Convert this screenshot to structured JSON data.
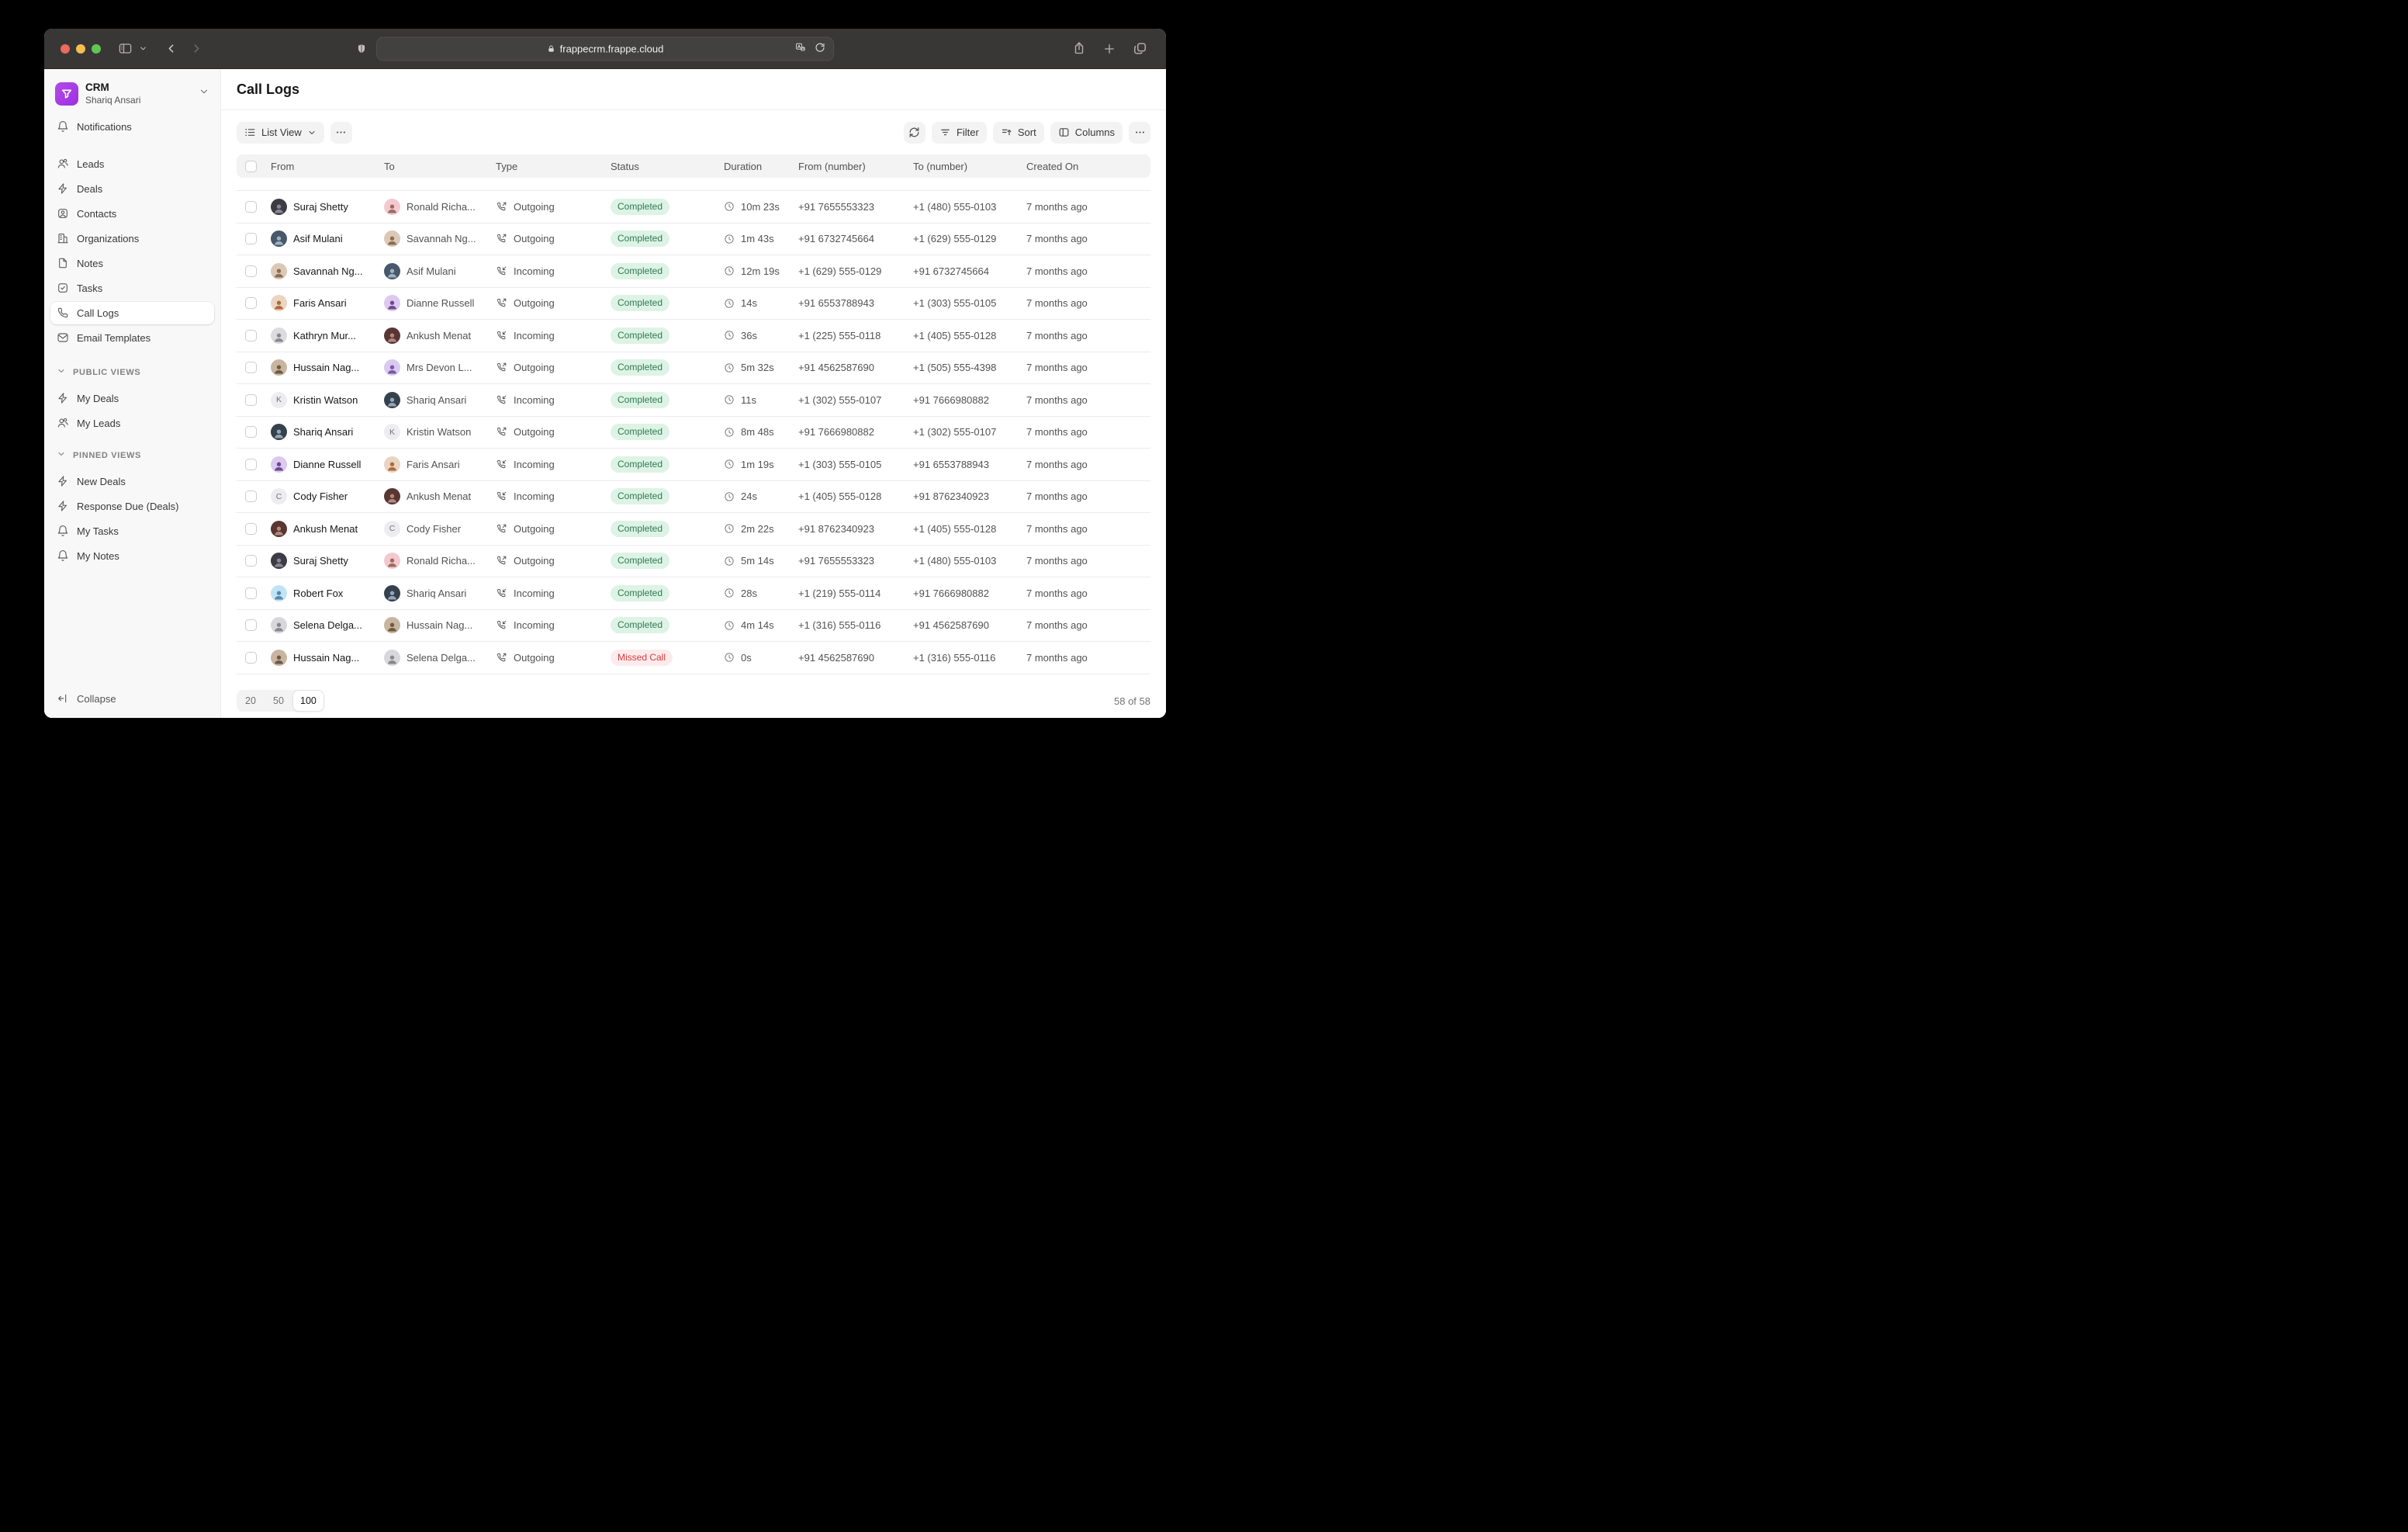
{
  "browser": {
    "url": "frappecrm.frappe.cloud"
  },
  "theme": {
    "completed_bg": "#ddf3e6",
    "completed_fg": "#2f7a4e",
    "missed_bg": "#fcebec",
    "missed_fg": "#d43c3c",
    "accent": "#a63ae2"
  },
  "sidebar": {
    "app": {
      "title": "CRM",
      "user": "Shariq Ansari"
    },
    "primary": [
      {
        "label": "Notifications",
        "icon": "bell-icon",
        "active": false
      }
    ],
    "modules": [
      {
        "label": "Leads",
        "icon": "users-icon",
        "active": false
      },
      {
        "label": "Deals",
        "icon": "zap-icon",
        "active": false
      },
      {
        "label": "Contacts",
        "icon": "contact-icon",
        "active": false
      },
      {
        "label": "Organizations",
        "icon": "building-icon",
        "active": false
      },
      {
        "label": "Notes",
        "icon": "file-icon",
        "active": false
      },
      {
        "label": "Tasks",
        "icon": "check-square-icon",
        "active": false
      },
      {
        "label": "Call Logs",
        "icon": "phone-icon",
        "active": true
      },
      {
        "label": "Email Templates",
        "icon": "mail-icon",
        "active": false
      }
    ],
    "groups": [
      {
        "title": "PUBLIC VIEWS",
        "items": [
          {
            "label": "My Deals",
            "icon": "zap-icon"
          },
          {
            "label": "My Leads",
            "icon": "users-icon"
          }
        ]
      },
      {
        "title": "PINNED VIEWS",
        "items": [
          {
            "label": "New Deals",
            "icon": "zap-icon"
          },
          {
            "label": "Response Due (Deals)",
            "icon": "zap-icon"
          },
          {
            "label": "My Tasks",
            "icon": "bell-icon"
          },
          {
            "label": "My Notes",
            "icon": "bell-icon"
          }
        ]
      }
    ],
    "collapse_label": "Collapse"
  },
  "main": {
    "title": "Call Logs",
    "toolbar": {
      "view": "List View",
      "filter": "Filter",
      "sort": "Sort",
      "columns": "Columns"
    },
    "table": {
      "columns": [
        "From",
        "To",
        "Type",
        "Status",
        "Duration",
        "From (number)",
        "To (number)",
        "Created On"
      ],
      "rows": [
        {
          "from": {
            "name": "Suraj Shetty",
            "avatar": {
              "kind": "photo",
              "bg": "#3d3c44",
              "fg": "#8a8694"
            }
          },
          "to": {
            "name": "Ronald Richa...",
            "avatar": {
              "kind": "photo",
              "bg": "#f3c9d0",
              "fg": "#9c6b5f"
            }
          },
          "type": "Outgoing",
          "status": {
            "label": "Completed",
            "kind": "completed"
          },
          "duration": "10m 23s",
          "from_number": "+91 7655553323",
          "to_number": "+1 (480) 555-0103",
          "created": "7 months ago"
        },
        {
          "from": {
            "name": "Asif Mulani",
            "avatar": {
              "kind": "photo",
              "bg": "#46586a",
              "fg": "#9fb0c0"
            }
          },
          "to": {
            "name": "Savannah Ng...",
            "avatar": {
              "kind": "photo",
              "bg": "#dcc8b6",
              "fg": "#8a6e54"
            }
          },
          "type": "Outgoing",
          "status": {
            "label": "Completed",
            "kind": "completed"
          },
          "duration": "1m 43s",
          "from_number": "+91 6732745664",
          "to_number": "+1 (629) 555-0129",
          "created": "7 months ago"
        },
        {
          "from": {
            "name": "Savannah Ng...",
            "avatar": {
              "kind": "photo",
              "bg": "#dcc8b6",
              "fg": "#8a6e54"
            }
          },
          "to": {
            "name": "Asif Mulani",
            "avatar": {
              "kind": "photo",
              "bg": "#46586a",
              "fg": "#9fb0c0"
            }
          },
          "type": "Incoming",
          "status": {
            "label": "Completed",
            "kind": "completed"
          },
          "duration": "12m 19s",
          "from_number": "+1 (629) 555-0129",
          "to_number": "+91 6732745664",
          "created": "7 months ago"
        },
        {
          "from": {
            "name": "Faris Ansari",
            "avatar": {
              "kind": "photo",
              "bg": "#e9d5c2",
              "fg": "#b06a3c"
            }
          },
          "to": {
            "name": "Dianne Russell",
            "avatar": {
              "kind": "photo",
              "bg": "#dcc8f0",
              "fg": "#6d4a8f"
            }
          },
          "type": "Outgoing",
          "status": {
            "label": "Completed",
            "kind": "completed"
          },
          "duration": "14s",
          "from_number": "+91 6553788943",
          "to_number": "+1 (303) 555-0105",
          "created": "7 months ago"
        },
        {
          "from": {
            "name": "Kathryn Mur...",
            "avatar": {
              "kind": "photo",
              "bg": "#dcdce0",
              "fg": "#8a8a92"
            }
          },
          "to": {
            "name": "Ankush Menat",
            "avatar": {
              "kind": "photo",
              "bg": "#593631",
              "fg": "#b08a80"
            }
          },
          "type": "Incoming",
          "status": {
            "label": "Completed",
            "kind": "completed"
          },
          "duration": "36s",
          "from_number": "+1 (225) 555-0118",
          "to_number": "+1 (405) 555-0128",
          "created": "7 months ago"
        },
        {
          "from": {
            "name": "Hussain Nag...",
            "avatar": {
              "kind": "photo",
              "bg": "#c8b5a0",
              "fg": "#6e5a44"
            }
          },
          "to": {
            "name": "Mrs Devon L...",
            "avatar": {
              "kind": "photo",
              "bg": "#d9c9f2",
              "fg": "#7a5aa0"
            }
          },
          "type": "Outgoing",
          "status": {
            "label": "Completed",
            "kind": "completed"
          },
          "duration": "5m 32s",
          "from_number": "+91 4562587690",
          "to_number": "+1 (505) 555-4398",
          "created": "7 months ago"
        },
        {
          "from": {
            "name": "Kristin Watson",
            "avatar": {
              "kind": "letter",
              "initial": "K",
              "bg": "#ededf0",
              "fg": "#737380"
            }
          },
          "to": {
            "name": "Shariq Ansari",
            "avatar": {
              "kind": "photo",
              "bg": "#35414d",
              "fg": "#94a6b6"
            }
          },
          "type": "Incoming",
          "status": {
            "label": "Completed",
            "kind": "completed"
          },
          "duration": "11s",
          "from_number": "+1 (302) 555-0107",
          "to_number": "+91 7666980882",
          "created": "7 months ago"
        },
        {
          "from": {
            "name": "Shariq Ansari",
            "avatar": {
              "kind": "photo",
              "bg": "#35414d",
              "fg": "#94a6b6"
            }
          },
          "to": {
            "name": "Kristin Watson",
            "avatar": {
              "kind": "letter",
              "initial": "K",
              "bg": "#ededf0",
              "fg": "#737380"
            }
          },
          "type": "Outgoing",
          "status": {
            "label": "Completed",
            "kind": "completed"
          },
          "duration": "8m 48s",
          "from_number": "+91 7666980882",
          "to_number": "+1 (302) 555-0107",
          "created": "7 months ago"
        },
        {
          "from": {
            "name": "Dianne Russell",
            "avatar": {
              "kind": "photo",
              "bg": "#dcc8f0",
              "fg": "#6d4a8f"
            }
          },
          "to": {
            "name": "Faris Ansari",
            "avatar": {
              "kind": "photo",
              "bg": "#e9d5c2",
              "fg": "#b06a3c"
            }
          },
          "type": "Incoming",
          "status": {
            "label": "Completed",
            "kind": "completed"
          },
          "duration": "1m 19s",
          "from_number": "+1 (303) 555-0105",
          "to_number": "+91 6553788943",
          "created": "7 months ago"
        },
        {
          "from": {
            "name": "Cody Fisher",
            "avatar": {
              "kind": "letter",
              "initial": "C",
              "bg": "#ededf0",
              "fg": "#737380"
            }
          },
          "to": {
            "name": "Ankush Menat",
            "avatar": {
              "kind": "photo",
              "bg": "#593631",
              "fg": "#b08a80"
            }
          },
          "type": "Incoming",
          "status": {
            "label": "Completed",
            "kind": "completed"
          },
          "duration": "24s",
          "from_number": "+1 (405) 555-0128",
          "to_number": "+91 8762340923",
          "created": "7 months ago"
        },
        {
          "from": {
            "name": "Ankush Menat",
            "avatar": {
              "kind": "photo",
              "bg": "#593631",
              "fg": "#b08a80"
            }
          },
          "to": {
            "name": "Cody Fisher",
            "avatar": {
              "kind": "letter",
              "initial": "C",
              "bg": "#ededf0",
              "fg": "#737380"
            }
          },
          "type": "Outgoing",
          "status": {
            "label": "Completed",
            "kind": "completed"
          },
          "duration": "2m 22s",
          "from_number": "+91 8762340923",
          "to_number": "+1 (405) 555-0128",
          "created": "7 months ago"
        },
        {
          "from": {
            "name": "Suraj Shetty",
            "avatar": {
              "kind": "photo",
              "bg": "#3d3c44",
              "fg": "#8a8694"
            }
          },
          "to": {
            "name": "Ronald Richa...",
            "avatar": {
              "kind": "photo",
              "bg": "#f3c9d0",
              "fg": "#9c6b5f"
            }
          },
          "type": "Outgoing",
          "status": {
            "label": "Completed",
            "kind": "completed"
          },
          "duration": "5m 14s",
          "from_number": "+91 7655553323",
          "to_number": "+1 (480) 555-0103",
          "created": "7 months ago"
        },
        {
          "from": {
            "name": "Robert Fox",
            "avatar": {
              "kind": "photo",
              "bg": "#c2e3f5",
              "fg": "#5a8aa8"
            }
          },
          "to": {
            "name": "Shariq Ansari",
            "avatar": {
              "kind": "photo",
              "bg": "#35414d",
              "fg": "#94a6b6"
            }
          },
          "type": "Incoming",
          "status": {
            "label": "Completed",
            "kind": "completed"
          },
          "duration": "28s",
          "from_number": "+1 (219) 555-0114",
          "to_number": "+91 7666980882",
          "created": "7 months ago"
        },
        {
          "from": {
            "name": "Selena Delga...",
            "avatar": {
              "kind": "photo",
              "bg": "#d8d8dc",
              "fg": "#88888f"
            }
          },
          "to": {
            "name": "Hussain Nag...",
            "avatar": {
              "kind": "photo",
              "bg": "#c8b5a0",
              "fg": "#6e5a44"
            }
          },
          "type": "Incoming",
          "status": {
            "label": "Completed",
            "kind": "completed"
          },
          "duration": "4m 14s",
          "from_number": "+1 (316) 555-0116",
          "to_number": "+91 4562587690",
          "created": "7 months ago"
        },
        {
          "from": {
            "name": "Hussain Nag...",
            "avatar": {
              "kind": "photo",
              "bg": "#c8b5a0",
              "fg": "#6e5a44"
            }
          },
          "to": {
            "name": "Selena Delga...",
            "avatar": {
              "kind": "photo",
              "bg": "#d8d8dc",
              "fg": "#88888f"
            }
          },
          "type": "Outgoing",
          "status": {
            "label": "Missed Call",
            "kind": "missed"
          },
          "duration": "0s",
          "from_number": "+91 4562587690",
          "to_number": "+1 (316) 555-0116",
          "created": "7 months ago"
        }
      ]
    },
    "pagination": {
      "options": [
        "20",
        "50",
        "100"
      ],
      "selected": "100",
      "total": "58 of 58"
    }
  }
}
